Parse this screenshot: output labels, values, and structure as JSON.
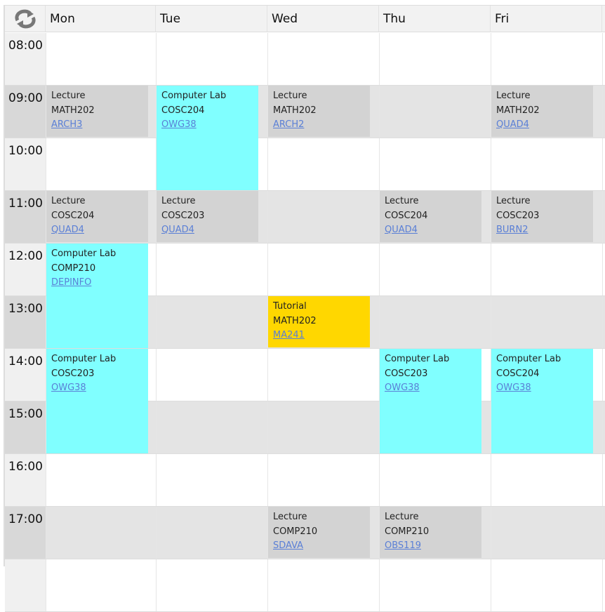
{
  "header": {
    "refresh_icon": "refresh-icon",
    "days": [
      "Mon",
      "Tue",
      "Wed",
      "Thu",
      "Fri"
    ]
  },
  "times": [
    "08:00",
    "09:00",
    "10:00",
    "11:00",
    "12:00",
    "13:00",
    "14:00",
    "15:00",
    "16:00",
    "17:00"
  ],
  "colors": {
    "Lecture": "#d3d3d3",
    "Computer Lab": "#80ffff",
    "Tutorial": "#ffd700"
  },
  "events": [
    {
      "day": 0,
      "start": "09:00",
      "hours": 1,
      "type": "Lecture",
      "course": "MATH202",
      "room": "ARCH3"
    },
    {
      "day": 1,
      "start": "09:00",
      "hours": 2,
      "type": "Computer Lab",
      "course": "COSC204",
      "room": "OWG38"
    },
    {
      "day": 2,
      "start": "09:00",
      "hours": 1,
      "type": "Lecture",
      "course": "MATH202",
      "room": "ARCH2"
    },
    {
      "day": 4,
      "start": "09:00",
      "hours": 1,
      "type": "Lecture",
      "course": "MATH202",
      "room": "QUAD4"
    },
    {
      "day": 0,
      "start": "11:00",
      "hours": 1,
      "type": "Lecture",
      "course": "COSC204",
      "room": "QUAD4"
    },
    {
      "day": 1,
      "start": "11:00",
      "hours": 1,
      "type": "Lecture",
      "course": "COSC203",
      "room": "QUAD4"
    },
    {
      "day": 3,
      "start": "11:00",
      "hours": 1,
      "type": "Lecture",
      "course": "COSC204",
      "room": "QUAD4"
    },
    {
      "day": 4,
      "start": "11:00",
      "hours": 1,
      "type": "Lecture",
      "course": "COSC203",
      "room": "BURN2"
    },
    {
      "day": 0,
      "start": "12:00",
      "hours": 2,
      "type": "Computer Lab",
      "course": "COMP210",
      "room": "DEPINFO"
    },
    {
      "day": 2,
      "start": "13:00",
      "hours": 1,
      "type": "Tutorial",
      "course": "MATH202",
      "room": "MA241"
    },
    {
      "day": 0,
      "start": "14:00",
      "hours": 2,
      "type": "Computer Lab",
      "course": "COSC203",
      "room": "OWG38"
    },
    {
      "day": 3,
      "start": "14:00",
      "hours": 2,
      "type": "Computer Lab",
      "course": "COSC203",
      "room": "OWG38"
    },
    {
      "day": 4,
      "start": "14:00",
      "hours": 2,
      "type": "Computer Lab",
      "course": "COSC204",
      "room": "OWG38"
    },
    {
      "day": 2,
      "start": "17:00",
      "hours": 1,
      "type": "Lecture",
      "course": "COMP210",
      "room": "SDAVA"
    },
    {
      "day": 3,
      "start": "17:00",
      "hours": 1,
      "type": "Lecture",
      "course": "COMP210",
      "room": "OBS119"
    }
  ]
}
